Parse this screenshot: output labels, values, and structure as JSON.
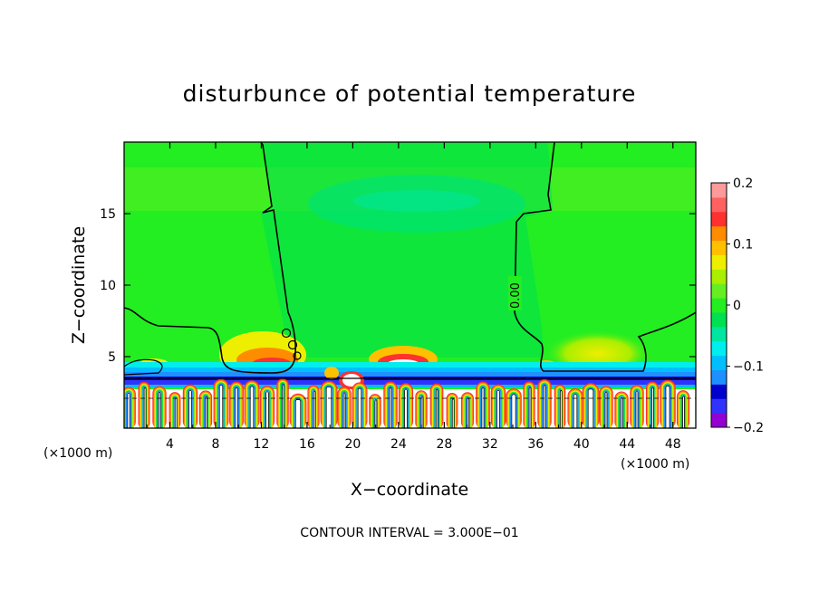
{
  "chart_data": {
    "type": "heatmap",
    "title": "disturbunce of potential temperature",
    "xlabel": "X−coordinate",
    "ylabel": "Z−coordinate",
    "x_unit": "(×1000 m)",
    "z_unit": "(×1000 m)",
    "xlim": [
      0,
      50
    ],
    "ylim": [
      0,
      20
    ],
    "x_ticks": [
      4,
      8,
      12,
      16,
      20,
      24,
      28,
      32,
      36,
      40,
      44,
      48
    ],
    "y_ticks": [
      5,
      10,
      15
    ],
    "contour_label": "0.00",
    "contour_interval_text": "CONTOUR INTERVAL = 3.000E−01",
    "colorbar": {
      "range": [
        -0.2,
        0.2
      ],
      "tick_values": [
        0.2,
        0.1,
        0,
        -0.1,
        -0.2
      ],
      "tick_labels": [
        "0.2",
        "0.1",
        "0",
        "−0.1",
        "−0.2"
      ],
      "colors": [
        "#9400d3",
        "#3232ff",
        "#0000cd",
        "#1e90ff",
        "#00bfff",
        "#00eeee",
        "#00e6a0",
        "#00e050",
        "#22ee22",
        "#66ee22",
        "#aaee00",
        "#eeee00",
        "#ffc000",
        "#ff8c00",
        "#ff3030",
        "#ff6060",
        "#ff9a9a"
      ]
    }
  }
}
